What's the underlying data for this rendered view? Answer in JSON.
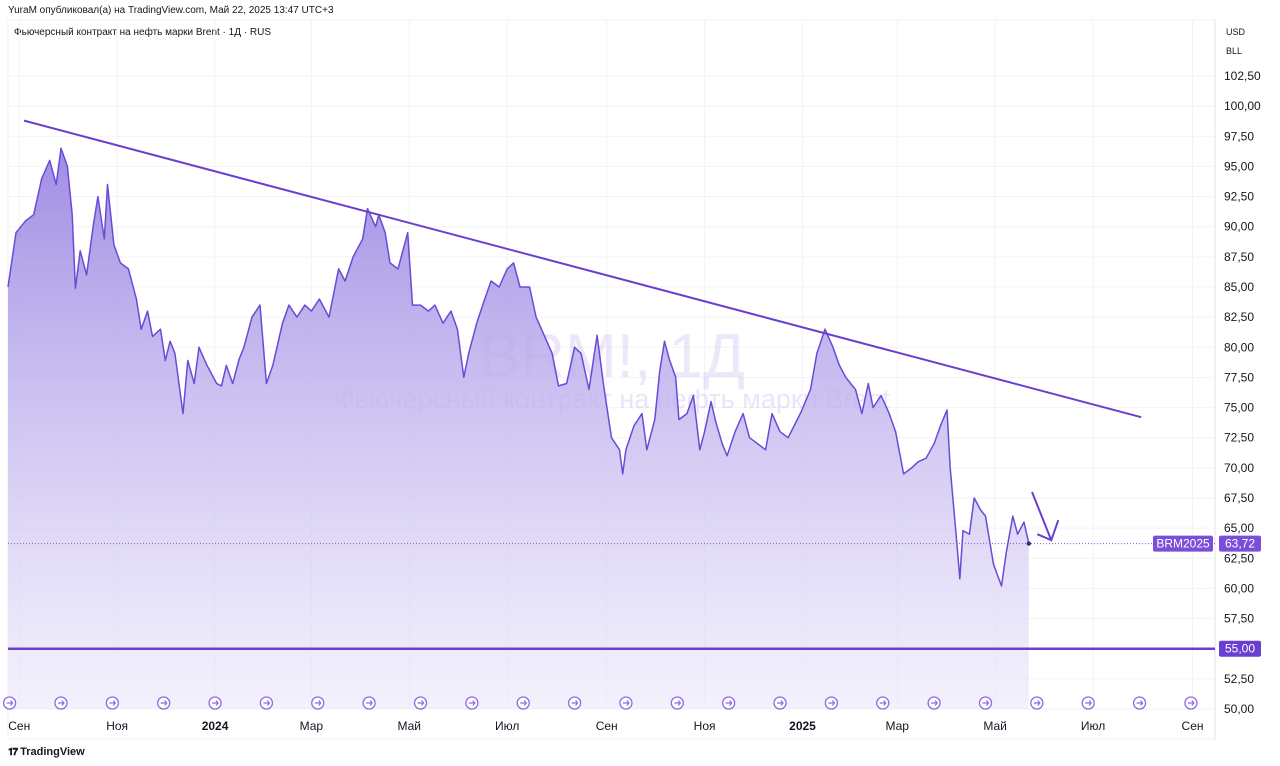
{
  "header": {
    "published": "YuraM опубликовал(а) на TradingView.com, Май 22, 2025 13:47 UTC+3",
    "legend": "Фьючерсный контракт на нефть марки Brent · 1Д · RUS"
  },
  "currency": {
    "unit": "USD",
    "sub": "BLL"
  },
  "watermark": {
    "symbol": "BRM!, 1Д",
    "name": "Фьючерсный контракт на нефть марки Brent"
  },
  "footer": {
    "brand": "TradingView"
  },
  "chart_data": {
    "type": "area",
    "colors": {
      "line": "#6a4bd6",
      "fill_top": "#9b86e2",
      "fill_bottom": "#f1eefc",
      "trend": "#6a3fd0",
      "level": "#6a3fd0"
    },
    "x_axis": {
      "start": "2023-08-25",
      "end": "2025-09-15",
      "ticks": [
        {
          "date": "2023-09-01",
          "label": "Сен",
          "bold": false
        },
        {
          "date": "2023-11-01",
          "label": "Ноя",
          "bold": false
        },
        {
          "date": "2024-01-01",
          "label": "2024",
          "bold": true
        },
        {
          "date": "2024-03-01",
          "label": "Мар",
          "bold": false
        },
        {
          "date": "2024-05-01",
          "label": "Май",
          "bold": false
        },
        {
          "date": "2024-07-01",
          "label": "Июл",
          "bold": false
        },
        {
          "date": "2024-09-01",
          "label": "Сен",
          "bold": false
        },
        {
          "date": "2024-11-01",
          "label": "Ноя",
          "bold": false
        },
        {
          "date": "2025-01-01",
          "label": "2025",
          "bold": true
        },
        {
          "date": "2025-03-01",
          "label": "Мар",
          "bold": false
        },
        {
          "date": "2025-05-01",
          "label": "Май",
          "bold": false
        },
        {
          "date": "2025-07-01",
          "label": "Июл",
          "bold": false
        },
        {
          "date": "2025-09-01",
          "label": "Сен",
          "bold": false
        }
      ]
    },
    "y_axis": {
      "min": 50,
      "max": 102.5,
      "ticks": [
        "102,50",
        "100,00",
        "97,50",
        "95,00",
        "92,50",
        "90,00",
        "87,50",
        "85,00",
        "82,50",
        "80,00",
        "77,50",
        "75,00",
        "72,50",
        "70,00",
        "67,50",
        "65,00",
        "62,50",
        "60,00",
        "57,50",
        "55,00",
        "52,50",
        "50,00"
      ]
    },
    "series": [
      {
        "points": [
          [
            "2023-08-25",
            85.0
          ],
          [
            "2023-08-30",
            89.5
          ],
          [
            "2023-09-05",
            90.5
          ],
          [
            "2023-09-10",
            91.0
          ],
          [
            "2023-09-15",
            94.0
          ],
          [
            "2023-09-20",
            95.5
          ],
          [
            "2023-09-24",
            93.5
          ],
          [
            "2023-09-27",
            96.5
          ],
          [
            "2023-10-01",
            95.0
          ],
          [
            "2023-10-04",
            91.0
          ],
          [
            "2023-10-06",
            84.9
          ],
          [
            "2023-10-09",
            88.0
          ],
          [
            "2023-10-13",
            86.0
          ],
          [
            "2023-10-17",
            90.0
          ],
          [
            "2023-10-20",
            92.5
          ],
          [
            "2023-10-24",
            89.0
          ],
          [
            "2023-10-26",
            93.5
          ],
          [
            "2023-10-30",
            88.5
          ],
          [
            "2023-11-03",
            87.0
          ],
          [
            "2023-11-08",
            86.5
          ],
          [
            "2023-11-13",
            84.0
          ],
          [
            "2023-11-16",
            81.5
          ],
          [
            "2023-11-20",
            83.0
          ],
          [
            "2023-11-23",
            80.9
          ],
          [
            "2023-11-28",
            81.5
          ],
          [
            "2023-12-01",
            78.9
          ],
          [
            "2023-12-04",
            80.5
          ],
          [
            "2023-12-07",
            79.5
          ],
          [
            "2023-12-12",
            74.5
          ],
          [
            "2023-12-15",
            78.9
          ],
          [
            "2023-12-19",
            77.0
          ],
          [
            "2023-12-22",
            80.0
          ],
          [
            "2023-12-27",
            78.5
          ],
          [
            "2024-01-02",
            77.0
          ],
          [
            "2024-01-05",
            76.8
          ],
          [
            "2024-01-08",
            78.5
          ],
          [
            "2024-01-12",
            77.0
          ],
          [
            "2024-01-16",
            79.0
          ],
          [
            "2024-01-19",
            80.0
          ],
          [
            "2024-01-24",
            82.5
          ],
          [
            "2024-01-29",
            83.5
          ],
          [
            "2024-02-02",
            77.0
          ],
          [
            "2024-02-06",
            78.5
          ],
          [
            "2024-02-12",
            82.0
          ],
          [
            "2024-02-16",
            83.5
          ],
          [
            "2024-02-21",
            82.5
          ],
          [
            "2024-02-26",
            83.5
          ],
          [
            "2024-03-01",
            83.0
          ],
          [
            "2024-03-06",
            84.0
          ],
          [
            "2024-03-12",
            82.5
          ],
          [
            "2024-03-18",
            86.5
          ],
          [
            "2024-03-22",
            85.5
          ],
          [
            "2024-03-27",
            87.5
          ],
          [
            "2024-04-02",
            89.0
          ],
          [
            "2024-04-05",
            91.5
          ],
          [
            "2024-04-10",
            90.0
          ],
          [
            "2024-04-12",
            91.0
          ],
          [
            "2024-04-16",
            89.5
          ],
          [
            "2024-04-19",
            87.0
          ],
          [
            "2024-04-24",
            86.5
          ],
          [
            "2024-04-30",
            89.5
          ],
          [
            "2024-05-03",
            83.5
          ],
          [
            "2024-05-08",
            83.5
          ],
          [
            "2024-05-13",
            83.0
          ],
          [
            "2024-05-17",
            83.5
          ],
          [
            "2024-05-22",
            82.0
          ],
          [
            "2024-05-27",
            83.0
          ],
          [
            "2024-05-31",
            81.5
          ],
          [
            "2024-06-04",
            77.5
          ],
          [
            "2024-06-07",
            79.5
          ],
          [
            "2024-06-12",
            82.0
          ],
          [
            "2024-06-17",
            84.0
          ],
          [
            "2024-06-21",
            85.5
          ],
          [
            "2024-06-26",
            85.0
          ],
          [
            "2024-07-01",
            86.5
          ],
          [
            "2024-07-05",
            87.0
          ],
          [
            "2024-07-09",
            85.0
          ],
          [
            "2024-07-15",
            85.0
          ],
          [
            "2024-07-19",
            82.5
          ],
          [
            "2024-07-24",
            81.0
          ],
          [
            "2024-07-29",
            79.5
          ],
          [
            "2024-08-02",
            76.8
          ],
          [
            "2024-08-07",
            77.0
          ],
          [
            "2024-08-12",
            80.0
          ],
          [
            "2024-08-16",
            79.5
          ],
          [
            "2024-08-21",
            76.5
          ],
          [
            "2024-08-26",
            81.0
          ],
          [
            "2024-08-30",
            76.9
          ],
          [
            "2024-09-04",
            72.5
          ],
          [
            "2024-09-09",
            71.5
          ],
          [
            "2024-09-11",
            69.5
          ],
          [
            "2024-09-13",
            71.5
          ],
          [
            "2024-09-18",
            73.5
          ],
          [
            "2024-09-23",
            74.5
          ],
          [
            "2024-09-26",
            71.5
          ],
          [
            "2024-10-01",
            74.0
          ],
          [
            "2024-10-04",
            78.0
          ],
          [
            "2024-10-07",
            80.5
          ],
          [
            "2024-10-10",
            79.0
          ],
          [
            "2024-10-14",
            77.5
          ],
          [
            "2024-10-16",
            74.0
          ],
          [
            "2024-10-21",
            74.5
          ],
          [
            "2024-10-25",
            76.0
          ],
          [
            "2024-10-29",
            71.5
          ],
          [
            "2024-11-01",
            73.0
          ],
          [
            "2024-11-05",
            75.5
          ],
          [
            "2024-11-08",
            73.8
          ],
          [
            "2024-11-12",
            72.0
          ],
          [
            "2024-11-15",
            71.0
          ],
          [
            "2024-11-20",
            73.0
          ],
          [
            "2024-11-25",
            74.5
          ],
          [
            "2024-11-29",
            72.5
          ],
          [
            "2024-12-04",
            72.0
          ],
          [
            "2024-12-09",
            71.5
          ],
          [
            "2024-12-13",
            74.5
          ],
          [
            "2024-12-18",
            73.0
          ],
          [
            "2024-12-23",
            72.5
          ],
          [
            "2024-12-31",
            74.6
          ],
          [
            "2025-01-06",
            76.5
          ],
          [
            "2025-01-10",
            79.5
          ],
          [
            "2025-01-15",
            81.5
          ],
          [
            "2025-01-20",
            80.0
          ],
          [
            "2025-01-24",
            78.5
          ],
          [
            "2025-01-28",
            77.5
          ],
          [
            "2025-02-03",
            76.5
          ],
          [
            "2025-02-07",
            74.5
          ],
          [
            "2025-02-11",
            77.0
          ],
          [
            "2025-02-14",
            75.0
          ],
          [
            "2025-02-19",
            76.0
          ],
          [
            "2025-02-24",
            74.5
          ],
          [
            "2025-02-28",
            73.0
          ],
          [
            "2025-03-05",
            69.5
          ],
          [
            "2025-03-10",
            70.0
          ],
          [
            "2025-03-14",
            70.5
          ],
          [
            "2025-03-19",
            70.8
          ],
          [
            "2025-03-24",
            72.0
          ],
          [
            "2025-03-28",
            73.5
          ],
          [
            "2025-04-01",
            74.8
          ],
          [
            "2025-04-03",
            70.0
          ],
          [
            "2025-04-07",
            64.0
          ],
          [
            "2025-04-09",
            60.8
          ],
          [
            "2025-04-11",
            64.8
          ],
          [
            "2025-04-15",
            64.5
          ],
          [
            "2025-04-18",
            67.5
          ],
          [
            "2025-04-22",
            66.5
          ],
          [
            "2025-04-25",
            66.0
          ],
          [
            "2025-04-30",
            62.0
          ],
          [
            "2025-05-05",
            60.2
          ],
          [
            "2025-05-08",
            63.0
          ],
          [
            "2025-05-12",
            66.0
          ],
          [
            "2025-05-15",
            64.5
          ],
          [
            "2025-05-19",
            65.5
          ],
          [
            "2025-05-22",
            63.72
          ]
        ]
      }
    ],
    "trendline": {
      "from": [
        "2023-09-04",
        98.8
      ],
      "to": [
        "2025-07-31",
        74.2
      ]
    },
    "horizontal_level": {
      "value": 55.0,
      "label": "55,00"
    },
    "last_price": {
      "name": "BRM2025",
      "value": 63.72,
      "label": "63,72"
    },
    "arrow_annotation": {
      "from": [
        "2025-05-24",
        68.0
      ],
      "to": [
        "2025-06-05",
        64.0
      ]
    }
  }
}
